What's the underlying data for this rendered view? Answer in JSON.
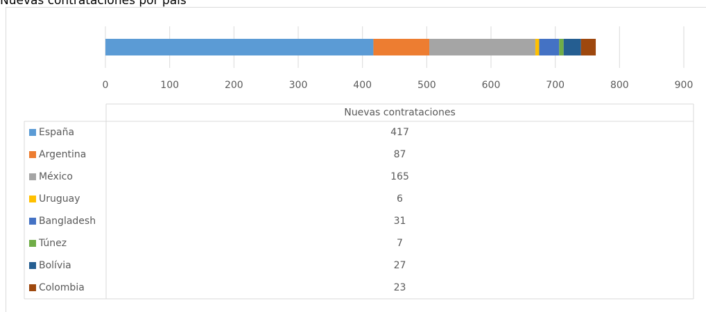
{
  "chart_data": {
    "type": "bar",
    "orientation": "horizontal",
    "stacked": true,
    "title": "Nuevas contrataciones por país",
    "categories": [
      "Nuevas contrataciones"
    ],
    "series": [
      {
        "name": "España",
        "color": "#5b9bd5",
        "values": [
          417
        ]
      },
      {
        "name": "Argentina",
        "color": "#ed7d31",
        "values": [
          87
        ]
      },
      {
        "name": "México",
        "color": "#a5a5a5",
        "values": [
          165
        ]
      },
      {
        "name": "Uruguay",
        "color": "#ffc000",
        "values": [
          6
        ]
      },
      {
        "name": "Bangladesh",
        "color": "#4472c4",
        "values": [
          31
        ]
      },
      {
        "name": "Túnez",
        "color": "#70ad47",
        "values": [
          7
        ]
      },
      {
        "name": "Bolívia",
        "color": "#255e91",
        "values": [
          27
        ]
      },
      {
        "name": "Colombia",
        "color": "#9e480e",
        "values": [
          23
        ]
      }
    ],
    "xlim": [
      0,
      900
    ],
    "xticks": [
      0,
      100,
      200,
      300,
      400,
      500,
      600,
      700,
      800,
      900
    ],
    "grid": true,
    "data_table": true
  }
}
